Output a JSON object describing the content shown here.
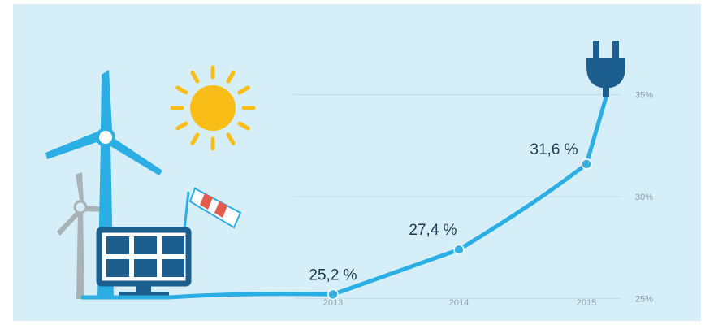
{
  "colors": {
    "background": "#d6eef8",
    "line": "#2aaee4",
    "point": "#3ab0e0",
    "gridline": "#c2dde9",
    "sun": "#f9bd17",
    "turbine_main": "#2aaee4",
    "turbine_back": "#a9b2b7",
    "panel_frame": "#1c5f8e",
    "panel_cell": "#1c5f8e",
    "windsock_stripe": "#e65a4e",
    "plug": "#1c5f8e"
  },
  "icons": [
    "wind-turbine-icon",
    "sun-icon",
    "solar-panel-icon",
    "windsock-icon",
    "power-plug-icon"
  ],
  "chart_data": {
    "type": "line",
    "title": "",
    "xlabel": "",
    "ylabel": "",
    "x": [
      "2013",
      "2014",
      "2015"
    ],
    "y_ticks": [
      "25%",
      "30%",
      "35%"
    ],
    "ylim": [
      24,
      37
    ],
    "grid": true,
    "series": [
      {
        "values": [
          25.2,
          27.4,
          31.6
        ],
        "labels": [
          "25,2 %",
          "27,4 %",
          "31,6 %"
        ]
      }
    ]
  }
}
